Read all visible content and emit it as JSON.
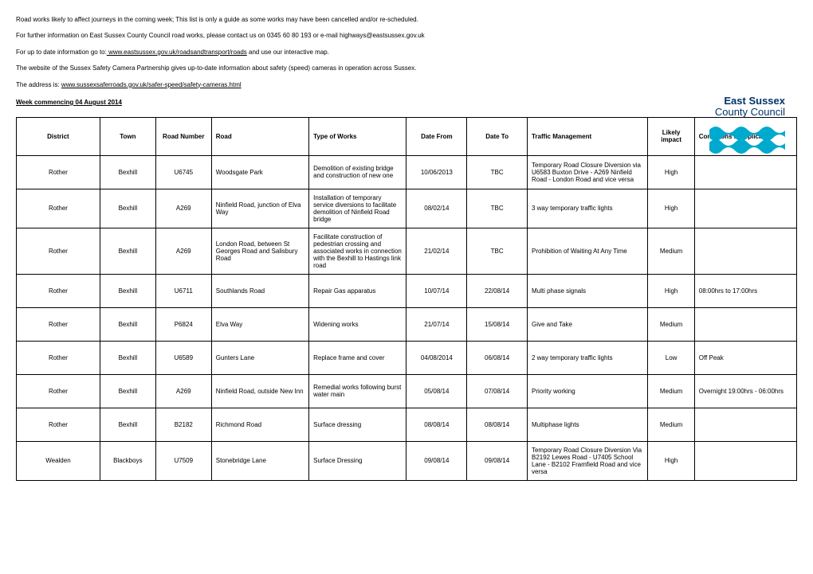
{
  "intro": {
    "p1": "Road works likely to affect journeys in the coming week; This list is only a guide as some works may have been cancelled and/or re-scheduled.",
    "p2a": "For further information on East Sussex County Council road works, please contact us on 0345 60 80 193 or e-mail highways@eastsussex.gov.uk",
    "p3a": "For up to date information go to:",
    "p3link": " www.eastsussex.gov.uk/roadsandtransport/roads",
    "p3b": " and use our interactive map.",
    "p4": "The website of the Sussex Safety Camera Partnership gives up-to-date information about safety (speed) cameras in operation across Sussex.",
    "p5a": "The address is: ",
    "p5link": "www.sussexsaferroads.gov.uk/safer-speed/safety-cameras.html"
  },
  "week": "Week commencing 04 August 2014",
  "logo": {
    "line1": "East Sussex",
    "line2": "County Council"
  },
  "headers": {
    "district": "District",
    "town": "Town",
    "roadnum": "Road Number",
    "road": "Road",
    "type": "Type of Works",
    "from": "Date From",
    "to": "Date To",
    "traffic": "Traffic Management",
    "impact": "Likely impact",
    "cond": "Conditions if Applicable"
  },
  "rows": [
    {
      "district": "Rother",
      "town": "Bexhill",
      "roadnum": "U6745",
      "road": "Woodsgate Park",
      "type": "Demolition of existing bridge and construction of new one",
      "from": "10/06/2013",
      "to": "TBC",
      "traffic": "Temporary Road Closure Diversion via U6583 Buxton Drive - A269 Ninfield Road - London Road and vice versa",
      "impact": "High",
      "cond": ""
    },
    {
      "district": "Rother",
      "town": "Bexhill",
      "roadnum": "A269",
      "road": "Ninfield Road, junction of Elva Way",
      "type": "Installation of temporary service diversions to facilitate demolition of Ninfield Road bridge",
      "from": "08/02/14",
      "to": "TBC",
      "traffic": "3 way temporary traffic lights",
      "impact": "High",
      "cond": ""
    },
    {
      "district": "Rother",
      "town": "Bexhill",
      "roadnum": "A269",
      "road": "London Road, between St Georges Road and Salisbury Road",
      "type": "Facilitate construction of pedestrian crossing and associated works in connection with the Bexhill to Hastings link road",
      "from": "21/02/14",
      "to": "TBC",
      "traffic": "Prohibition of Waiting At Any Time",
      "impact": "Medium",
      "cond": ""
    },
    {
      "district": "Rother",
      "town": "Bexhill",
      "roadnum": "U6711",
      "road": "Southlands Road",
      "type": "Repair Gas apparatus",
      "from": "10/07/14",
      "to": "22/08/14",
      "traffic": "Multi phase signals",
      "impact": "High",
      "cond": "08:00hrs to 17:00hrs"
    },
    {
      "district": "Rother",
      "town": "Bexhill",
      "roadnum": "P6824",
      "road": "Elva Way",
      "type": "Widening works",
      "from": "21/07/14",
      "to": "15/08/14",
      "traffic": "Give and Take",
      "impact": "Medium",
      "cond": ""
    },
    {
      "district": "Rother",
      "town": "Bexhill",
      "roadnum": "U6589",
      "road": "Gunters Lane",
      "type": "Replace frame and cover",
      "from": "04/08/2014",
      "to": "06/08/14",
      "traffic": "2 way temporary traffic lights",
      "impact": "Low",
      "cond": "Off Peak"
    },
    {
      "district": "Rother",
      "town": "Bexhill",
      "roadnum": "A269",
      "road": "Ninfield Road, outside New Inn",
      "type": "Remedial works following burst water main",
      "from": "05/08/14",
      "to": "07/08/14",
      "traffic": "Priority working",
      "impact": "Medium",
      "cond": "Overnight 19:00hrs - 06:00hrs"
    },
    {
      "district": "Rother",
      "town": "Bexhill",
      "roadnum": "B2182",
      "road": "Richmond Road",
      "type": "Surface dressing",
      "from": "08/08/14",
      "to": "08/08/14",
      "traffic": "Multiphase lights",
      "impact": "Medium",
      "cond": ""
    },
    {
      "district": "Wealden",
      "town": "Blackboys",
      "roadnum": "U7509",
      "road": "Stonebridge Lane",
      "type": "Surface Dressing",
      "from": "09/08/14",
      "to": "09/08/14",
      "traffic": "Temporary Road Closure Diversion Via B2192 Lewes Road - U7405 School Lane - B2102 Framfield Road and vice versa",
      "impact": "High",
      "cond": ""
    }
  ]
}
